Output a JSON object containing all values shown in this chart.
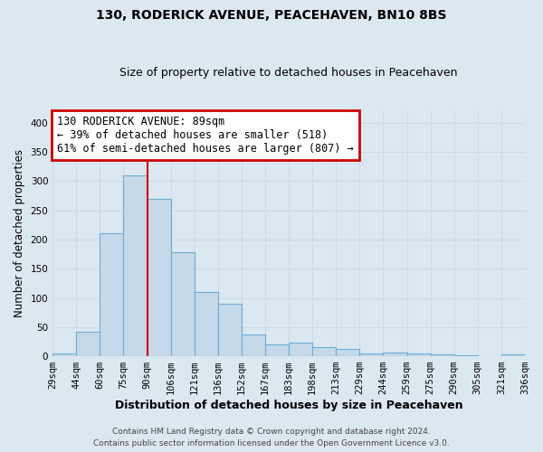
{
  "title": "130, RODERICK AVENUE, PEACEHAVEN, BN10 8BS",
  "subtitle": "Size of property relative to detached houses in Peacehaven",
  "xlabel": "Distribution of detached houses by size in Peacehaven",
  "ylabel": "Number of detached properties",
  "bar_labels": [
    "29sqm",
    "44sqm",
    "60sqm",
    "75sqm",
    "90sqm",
    "106sqm",
    "121sqm",
    "136sqm",
    "152sqm",
    "167sqm",
    "183sqm",
    "198sqm",
    "213sqm",
    "229sqm",
    "244sqm",
    "259sqm",
    "275sqm",
    "290sqm",
    "305sqm",
    "321sqm",
    "336sqm"
  ],
  "bar_values": [
    5,
    42,
    210,
    310,
    270,
    178,
    110,
    90,
    38,
    20,
    24,
    15,
    12,
    5,
    6,
    5,
    3,
    1,
    0,
    3
  ],
  "bar_color": "#c5d9e8",
  "bar_edge_color": "#6aaed6",
  "vline_x": 4,
  "vline_color": "#cc0000",
  "annotation_title": "130 RODERICK AVENUE: 89sqm",
  "annotation_line1": "← 39% of detached houses are smaller (518)",
  "annotation_line2": "61% of semi-detached houses are larger (807) →",
  "annotation_box_color": "#cc0000",
  "ylim": [
    0,
    420
  ],
  "footnote1": "Contains HM Land Registry data © Crown copyright and database right 2024.",
  "footnote2": "Contains public sector information licensed under the Open Government Licence v3.0.",
  "grid_color": "#d0d8e8",
  "background_color": "#dce8f0"
}
